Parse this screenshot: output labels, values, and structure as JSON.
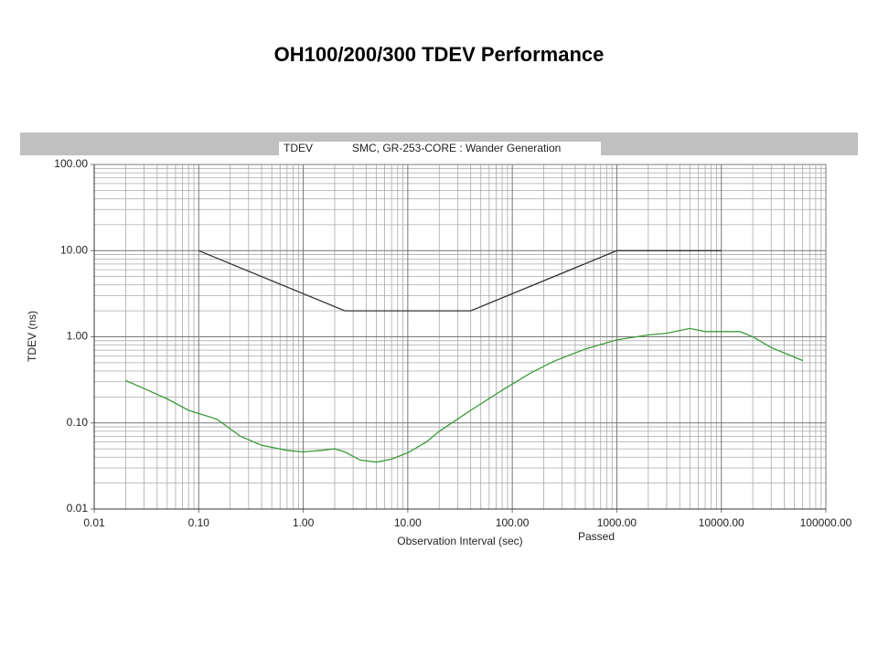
{
  "chart_data": {
    "type": "line",
    "title": "OH100/200/300 TDEV Performance",
    "header_left": "TDEV",
    "subtitle": "SMC, GR-253-CORE : Wander Generation",
    "xlabel": "Observation Interval (sec)",
    "ylabel": "TDEV (ns)",
    "status": "Passed",
    "status_color": "#3a9a3a",
    "xlog": true,
    "ylog": true,
    "grid": true,
    "xlim": [
      0.01,
      100000
    ],
    "ylim": [
      0.01,
      100
    ],
    "xticks": [
      0.01,
      {
        "value": 0.1,
        "label": "0.10"
      },
      {
        "value": 1,
        "label": "1.00"
      },
      {
        "value": 10,
        "label": "10.00"
      },
      {
        "value": 100,
        "label": "100.00"
      },
      {
        "value": 1000,
        "label": "1000.00"
      },
      {
        "value": 10000,
        "label": "10000.00"
      },
      {
        "value": 100000,
        "label": "100000.00"
      }
    ],
    "yticks": [
      0.01,
      {
        "value": 0.1,
        "label": "0.10"
      },
      {
        "value": 1,
        "label": "1.00"
      },
      {
        "value": 10,
        "label": "10.00"
      },
      {
        "value": 100,
        "label": "100.00"
      }
    ],
    "series": [
      {
        "color": "#333333",
        "x": [
          0.1,
          2.5,
          40,
          1000,
          10000
        ],
        "values": [
          10,
          2,
          2,
          10,
          10
        ]
      },
      {
        "color": "#3a9a3a",
        "x": [
          0.02,
          0.03,
          0.05,
          0.08,
          0.12,
          0.15,
          0.25,
          0.4,
          0.7,
          1.0,
          1.5,
          2.0,
          2.5,
          3.5,
          5.0,
          7.0,
          10,
          15,
          20,
          40,
          80,
          150,
          250,
          500,
          1000,
          2000,
          3000,
          5000,
          7000,
          10000,
          15000,
          20000,
          30000,
          60000
        ],
        "values": [
          0.31,
          0.25,
          0.19,
          0.14,
          0.12,
          0.11,
          0.07,
          0.055,
          0.048,
          0.046,
          0.048,
          0.05,
          0.046,
          0.037,
          0.035,
          0.038,
          0.045,
          0.06,
          0.08,
          0.14,
          0.24,
          0.38,
          0.52,
          0.72,
          0.92,
          1.05,
          1.1,
          1.25,
          1.15,
          1.15,
          1.15,
          1.0,
          0.75,
          0.53
        ]
      }
    ]
  }
}
